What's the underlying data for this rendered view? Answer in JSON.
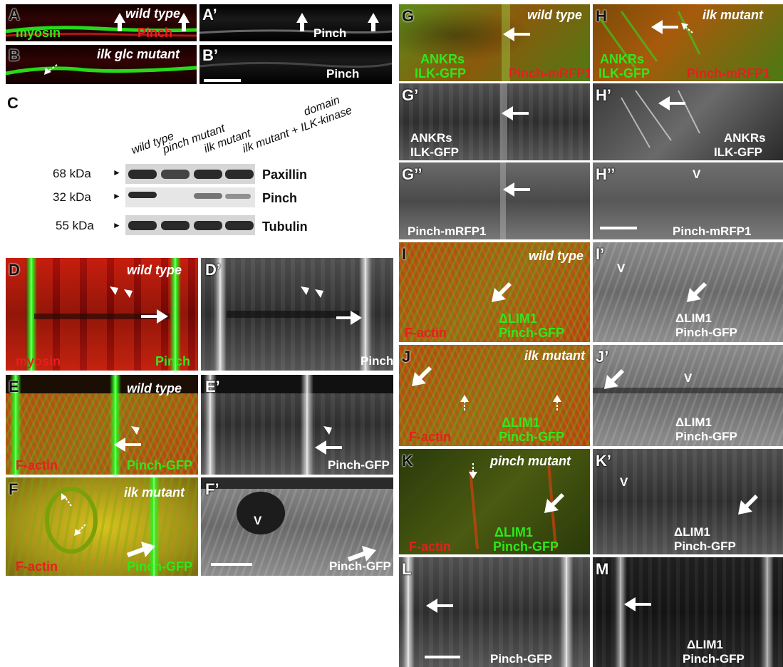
{
  "colors": {
    "green": "#2ee81c",
    "red": "#e81e1e",
    "white": "#ffffff",
    "label": "#111111"
  },
  "panels": {
    "A": {
      "letter": "A",
      "genotype": "wild type",
      "label_green": "myosin",
      "label_red": "Pinch"
    },
    "A1": {
      "letter": "A’",
      "label": "Pinch"
    },
    "B": {
      "letter": "B",
      "genotype": "ilk glc mutant"
    },
    "B1": {
      "letter": "B’",
      "label": "Pinch"
    },
    "D": {
      "letter": "D",
      "genotype": "wild type",
      "label_red": "myosin",
      "label_green": "Pinch"
    },
    "D1": {
      "letter": "D’",
      "label": "Pinch"
    },
    "E": {
      "letter": "E",
      "genotype": "wild type",
      "label_red": "F-actin",
      "label_green": "Pinch-GFP"
    },
    "E1": {
      "letter": "E’",
      "label": "Pinch-GFP"
    },
    "F": {
      "letter": "F",
      "genotype": "ilk mutant",
      "label_red": "F-actin",
      "label_green": "Pinch-GFP"
    },
    "F1": {
      "letter": "F’",
      "label": "Pinch-GFP",
      "mark": "V"
    },
    "G": {
      "letter": "G",
      "genotype": "wild type",
      "label_green_1": "ANKRs",
      "label_green_2": "ILK-GFP",
      "label_red": "Pinch-mRFP1"
    },
    "G1": {
      "letter": "G’",
      "label_1": "ANKRs",
      "label_2": "ILK-GFP"
    },
    "G2": {
      "letter": "G’’",
      "label": "Pinch-mRFP1"
    },
    "H": {
      "letter": "H",
      "genotype": "ilk mutant",
      "label_green_1": "ANKRs",
      "label_green_2": "ILK-GFP",
      "label_red": "Pinch-mRFP1"
    },
    "H1": {
      "letter": "H’",
      "label_1": "ANKRs",
      "label_2": "ILK-GFP"
    },
    "H2": {
      "letter": "H’’",
      "label": "Pinch-mRFP1",
      "mark": "V"
    },
    "I": {
      "letter": "I",
      "genotype": "wild type",
      "label_red": "F-actin",
      "label_green_1": "ΔLIM1",
      "label_green_2": "Pinch-GFP"
    },
    "I1": {
      "letter": "I’",
      "label_1": "ΔLIM1",
      "label_2": "Pinch-GFP",
      "mark": "V"
    },
    "J": {
      "letter": "J",
      "genotype": "ilk mutant",
      "label_red": "F-actin",
      "label_green_1": "ΔLIM1",
      "label_green_2": "Pinch-GFP"
    },
    "J1": {
      "letter": "J’",
      "label_1": "ΔLIM1",
      "label_2": "Pinch-GFP",
      "mark": "V"
    },
    "K": {
      "letter": "K",
      "genotype": "pinch mutant",
      "label_red": "F-actin",
      "label_green_1": "ΔLIM1",
      "label_green_2": "Pinch-GFP"
    },
    "K1": {
      "letter": "K’",
      "label_1": "ΔLIM1",
      "label_2": "Pinch-GFP",
      "mark": "V"
    },
    "L": {
      "letter": "L",
      "label": "Pinch-GFP"
    },
    "M": {
      "letter": "M",
      "label_1": "ΔLIM1",
      "label_2": "Pinch-GFP"
    }
  },
  "western": {
    "letter": "C",
    "lanes": [
      "wild type",
      "pinch mutant",
      "ilk mutant",
      "ilk mutant + ILK-kinase"
    ],
    "lane_extra": "domain",
    "marker_symbol": "►",
    "rows": [
      {
        "size": "68 kDa",
        "protein": "Paxillin",
        "bands": [
          1.0,
          0.9,
          1.0,
          1.0
        ]
      },
      {
        "size": "32 kDa",
        "protein": "Pinch",
        "bands": [
          0.9,
          0.0,
          0.7,
          0.5
        ]
      },
      {
        "size": "55 kDa",
        "protein": "Tubulin",
        "bands": [
          1.0,
          1.0,
          1.0,
          1.0
        ]
      }
    ]
  }
}
